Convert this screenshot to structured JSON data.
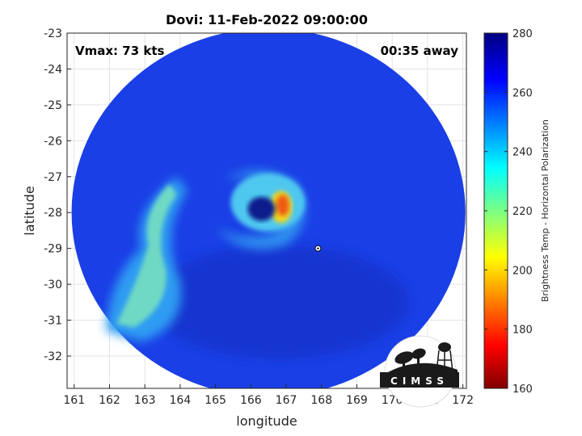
{
  "chart_data": {
    "type": "heatmap",
    "title": "Dovi: 11-Feb-2022 09:00:00",
    "xlabel": "longitude",
    "ylabel": "latitude",
    "xlim": [
      160.8,
      172.1
    ],
    "ylim": [
      -32.9,
      -23.0
    ],
    "x_ticks": [
      "161",
      "162",
      "163",
      "164",
      "165",
      "166",
      "167",
      "168",
      "169",
      "170",
      "171",
      "172"
    ],
    "y_ticks": [
      "-23",
      "-24",
      "-25",
      "-26",
      "-27",
      "-28",
      "-29",
      "-30",
      "-31",
      "-32"
    ],
    "grid": true,
    "annotations": {
      "vmax": "Vmax: 73 kts",
      "time_away": "00:35 away"
    },
    "storm_center": {
      "lon": 167.9,
      "lat": -29.0
    },
    "colorbar": {
      "label": "Brightness Temp - Horizontal Polarization",
      "range": [
        160,
        280
      ],
      "ticks": [
        "280",
        "260",
        "240",
        "220",
        "200",
        "180",
        "160"
      ],
      "colormap": "jet"
    },
    "swath_center": {
      "lon": 166.5,
      "lat": -28.0
    },
    "features": [
      {
        "name": "eye",
        "lon": 166.3,
        "lat": -27.9,
        "value": 270
      },
      {
        "name": "eyewall-warm",
        "lon": 166.9,
        "lat": -27.8,
        "value": 190
      },
      {
        "name": "western-band",
        "lon": 163.3,
        "lat": -29.5,
        "value": 228
      }
    ]
  },
  "logo": {
    "text": "CIMSS"
  }
}
